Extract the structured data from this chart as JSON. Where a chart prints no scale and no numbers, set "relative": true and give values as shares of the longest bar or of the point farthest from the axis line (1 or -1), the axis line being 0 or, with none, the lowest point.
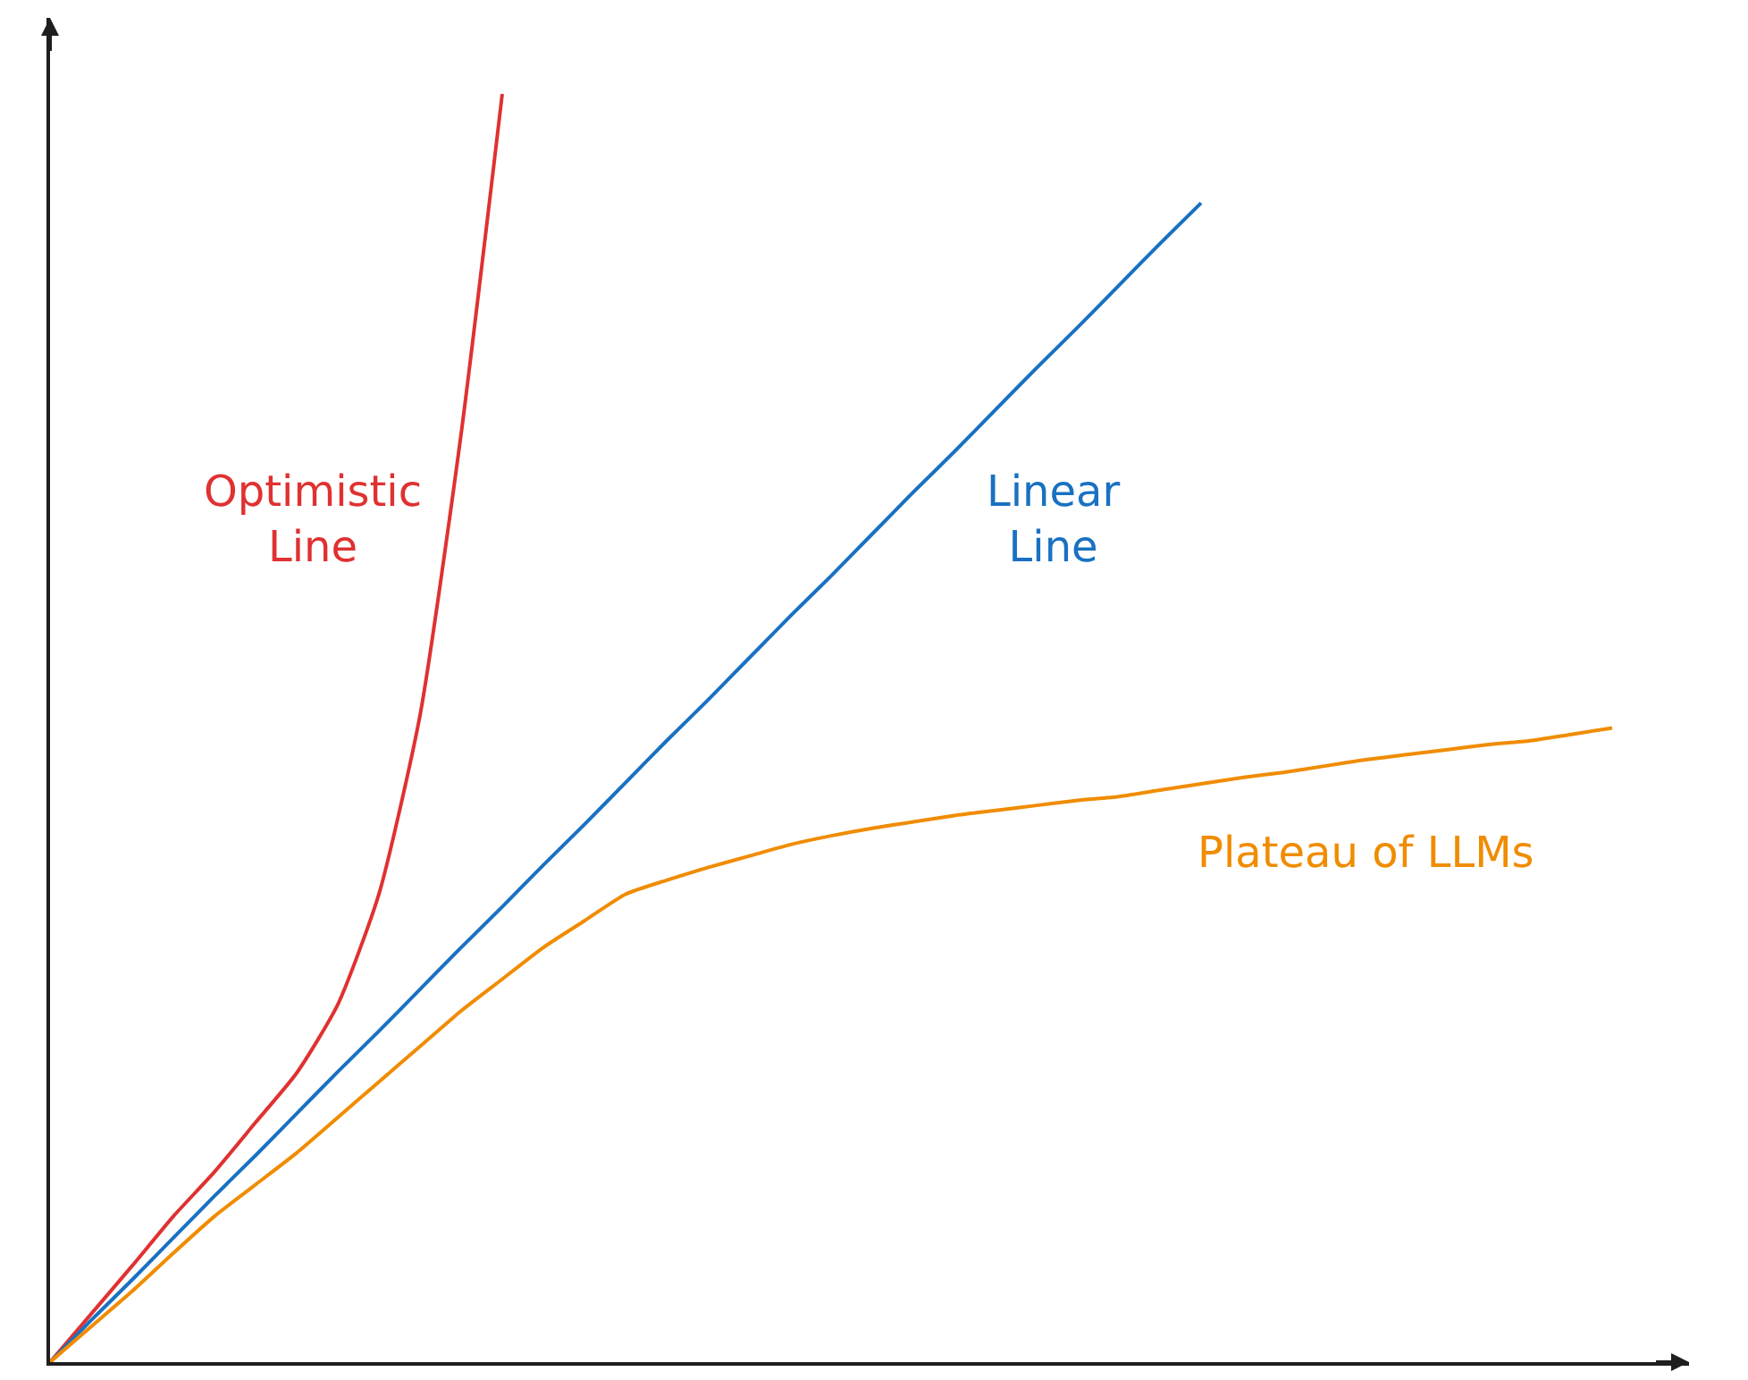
{
  "chart_data": {
    "type": "line",
    "relative": true,
    "categories": [
      null,
      null,
      null,
      null,
      null,
      null,
      null,
      null,
      null,
      null,
      null,
      null,
      null,
      null,
      null,
      null,
      null,
      null,
      null,
      null,
      null,
      null,
      null,
      null,
      null,
      null,
      null,
      null,
      null,
      null,
      null,
      null,
      null,
      null,
      null,
      null,
      null,
      null,
      null
    ],
    "series": [
      {
        "name": "Optimistic Line",
        "color": "#e03131",
        "values": [
          0,
          0.038,
          0.076,
          0.115,
          0.15,
          0.189,
          0.228,
          0.282,
          0.369,
          0.51,
          0.732,
          1,
          null,
          null,
          null,
          null,
          null,
          null,
          null,
          null,
          null,
          null,
          null,
          null,
          null,
          null,
          null,
          null,
          null,
          null,
          null,
          null,
          null,
          null,
          null,
          null,
          null,
          null,
          null
        ]
      },
      {
        "name": "Linear Line",
        "color": "#1971c2",
        "values": [
          0,
          0.033,
          0.065,
          0.098,
          0.131,
          0.163,
          0.196,
          0.229,
          0.261,
          0.294,
          0.327,
          0.359,
          0.392,
          0.424,
          0.457,
          0.49,
          0.522,
          0.555,
          0.588,
          0.62,
          0.653,
          0.686,
          0.718,
          0.751,
          0.784,
          0.816,
          0.849,
          0.882,
          0.914,
          null,
          null,
          null,
          null,
          null,
          null,
          null,
          null,
          null,
          null
        ]
      },
      {
        "name": "Plateau of LLMs",
        "color": "#f08c00",
        "values": [
          0,
          0.028,
          0.056,
          0.086,
          0.115,
          0.14,
          0.165,
          0.193,
          0.221,
          0.249,
          0.277,
          0.302,
          0.327,
          0.348,
          0.369,
          0.38,
          0.39,
          0.399,
          0.408,
          0.415,
          0.421,
          0.426,
          0.431,
          0.435,
          0.439,
          0.443,
          0.446,
          0.451,
          0.456,
          0.461,
          0.465,
          0.47,
          0.475,
          0.479,
          0.483,
          0.487,
          0.49,
          0.495,
          0.5
        ]
      }
    ]
  }
}
